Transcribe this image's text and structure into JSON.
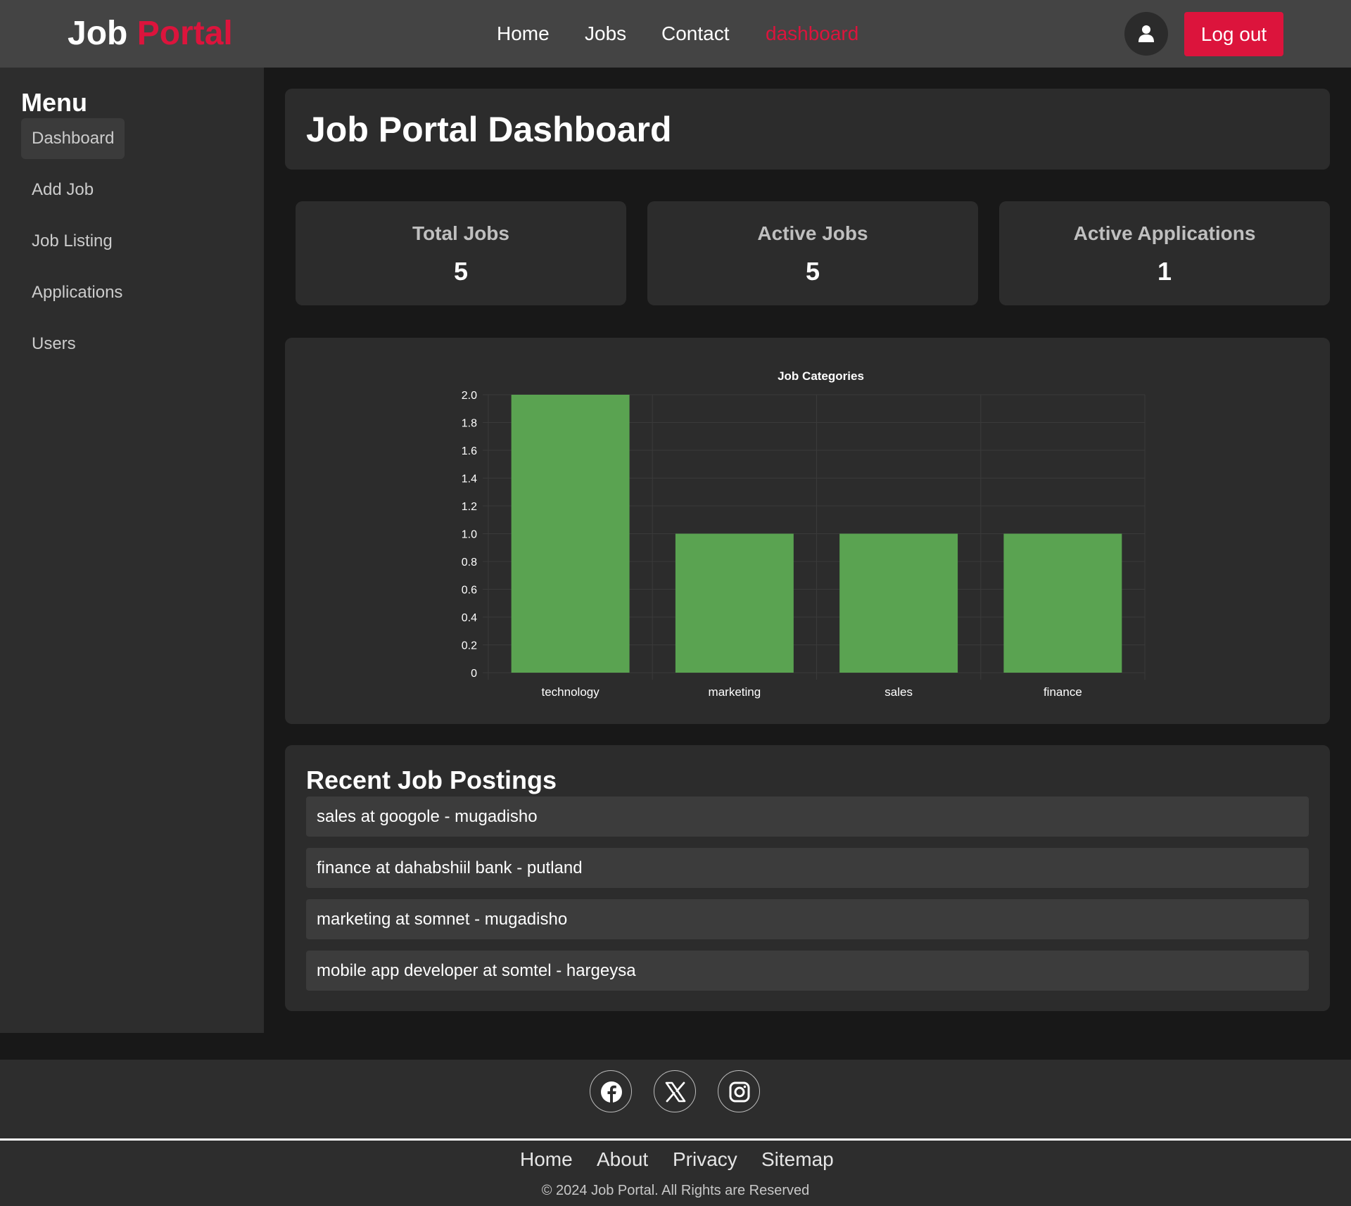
{
  "header": {
    "logo_part1": "Job",
    "logo_part2": "Portal",
    "nav": [
      {
        "label": "Home"
      },
      {
        "label": "Jobs"
      },
      {
        "label": "Contact"
      },
      {
        "label": "dashboard",
        "active": true
      }
    ],
    "user_icon": "user-icon",
    "logout_label": "Log out"
  },
  "sidebar": {
    "title": "Menu",
    "items": [
      {
        "label": "Dashboard",
        "active": true
      },
      {
        "label": "Add Job"
      },
      {
        "label": "Job Listing"
      },
      {
        "label": "Applications"
      },
      {
        "label": "Users"
      }
    ]
  },
  "main": {
    "title": "Job Portal Dashboard",
    "stats": [
      {
        "label": "Total Jobs",
        "value": "5"
      },
      {
        "label": "Active Jobs",
        "value": "5"
      },
      {
        "label": "Active Applications",
        "value": "1"
      }
    ],
    "recent_title": "Recent Job Postings",
    "recent_jobs": [
      "sales at googole - mugadisho",
      "finance at dahabshiil bank - putland",
      "marketing at somnet - mugadisho",
      "mobile app developer at somtel - hargeysa"
    ]
  },
  "chart_data": {
    "type": "bar",
    "title": "Job Categories",
    "categories": [
      "technology",
      "marketing",
      "sales",
      "finance"
    ],
    "values": [
      2,
      1,
      1,
      1
    ],
    "ylim": [
      0,
      2
    ],
    "yticks": [
      "0",
      "0.2",
      "0.4",
      "0.6",
      "0.8",
      "1.0",
      "1.2",
      "1.4",
      "1.6",
      "1.8",
      "2.0"
    ],
    "xlabel": "",
    "ylabel": "",
    "grid": true,
    "legend": "none",
    "bar_color": "#5aa351"
  },
  "footer": {
    "social_icons": [
      "facebook-icon",
      "x-icon",
      "instagram-icon"
    ],
    "links": [
      "Home",
      "About",
      "Privacy",
      "Sitemap"
    ],
    "copyright": "© 2024 Job Portal. All Rights are Reserved"
  },
  "colors": {
    "accent": "#dc143c",
    "header_bg": "#444444",
    "panel_bg": "#2c2c2c",
    "page_bg": "#181818"
  }
}
